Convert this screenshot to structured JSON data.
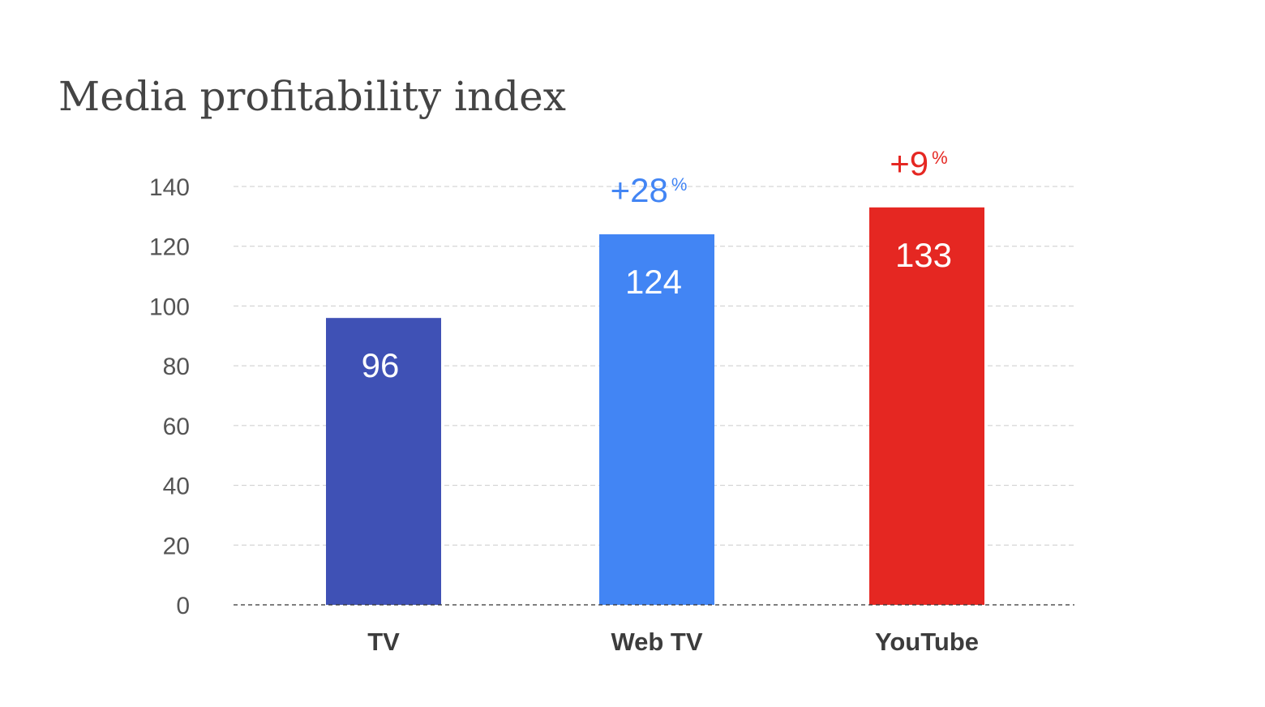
{
  "chart_data": {
    "type": "bar",
    "title": "Media profitability index",
    "categories": [
      "TV",
      "Web TV",
      "YouTube"
    ],
    "values": [
      96,
      124,
      133
    ],
    "colors": [
      "#3f51b5",
      "#4285f4",
      "#e52722"
    ],
    "annotations": [
      {
        "category": "Web TV",
        "value": "+28",
        "suffix": "%",
        "color": "#4285f4"
      },
      {
        "category": "YouTube",
        "value": "+9",
        "suffix": "%",
        "color": "#e52722"
      }
    ],
    "ylim": [
      0,
      140
    ],
    "yticks": [
      0,
      20,
      40,
      60,
      80,
      100,
      120,
      140
    ],
    "grid": true,
    "grid_style": "dashed",
    "legend": "none"
  }
}
